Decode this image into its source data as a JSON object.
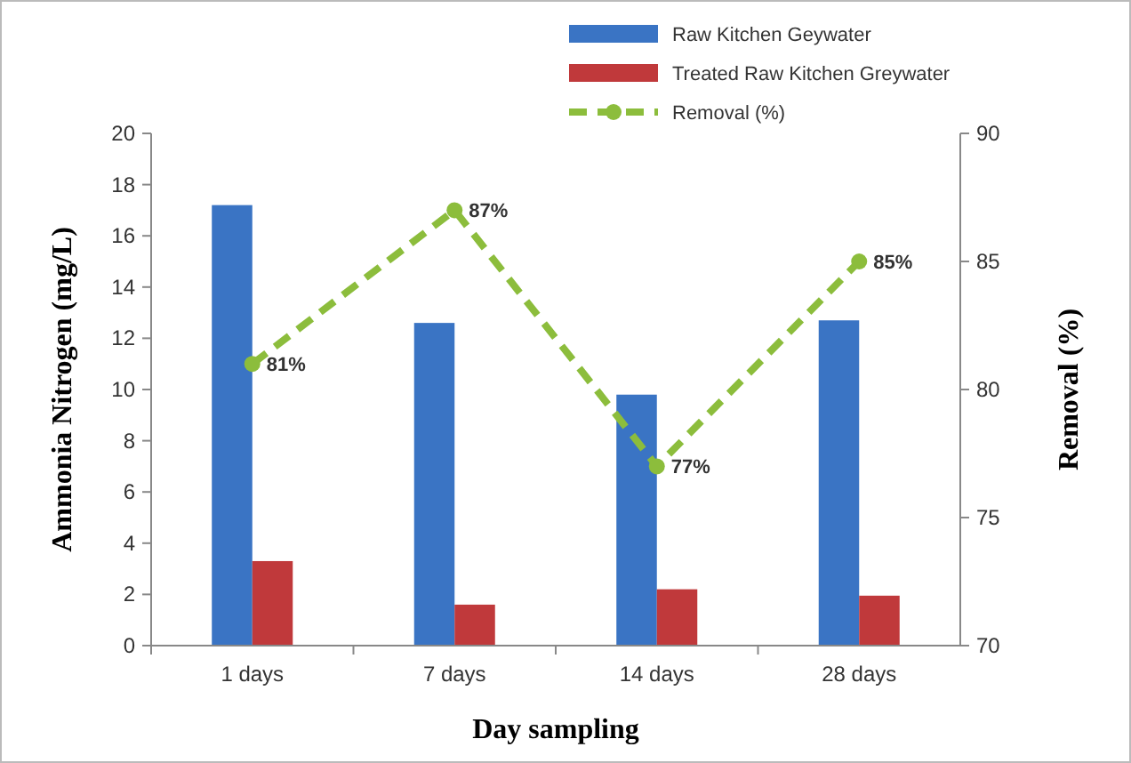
{
  "chart_data": {
    "type": "bar",
    "xlabel": "Day sampling",
    "ylabel": "Ammonia Nitrogen (mg/L)",
    "y2label": "Removal (%)",
    "categories": [
      "1 days",
      "7 days",
      "14 days",
      "28 days"
    ],
    "series": [
      {
        "name": "Raw Kitchen Geywater",
        "color": "#3a74c4",
        "values": [
          17.2,
          12.6,
          9.8,
          12.7
        ]
      },
      {
        "name": "Treated Raw Kitchen Greywater",
        "color": "#c0393b",
        "values": [
          3.3,
          1.6,
          2.2,
          1.95
        ]
      },
      {
        "name": "Removal (%)",
        "type": "line",
        "axis": "y2",
        "color": "#8cbd3c",
        "marker": "circle",
        "line_style": "dashed",
        "values": [
          81,
          87,
          77,
          85
        ],
        "value_labels": [
          "81%",
          "87%",
          "77%",
          "85%"
        ]
      }
    ],
    "ylim": [
      0,
      20
    ],
    "yticks": [
      0,
      2,
      4,
      6,
      8,
      10,
      12,
      14,
      16,
      18,
      20
    ],
    "y2lim": [
      70,
      90
    ],
    "y2ticks": [
      70,
      75,
      80,
      85,
      90
    ],
    "grid": false,
    "legend": "top"
  }
}
